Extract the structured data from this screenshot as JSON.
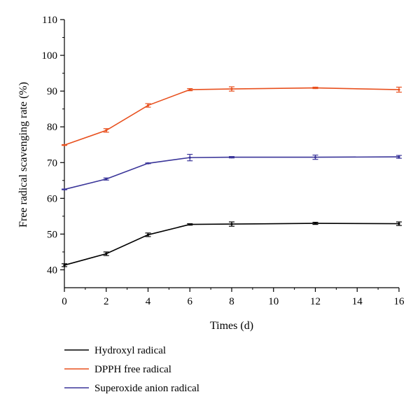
{
  "chart_data": {
    "type": "line",
    "title": "",
    "xlabel": "Times (d)",
    "ylabel": "Free radical scavenging rate (%)",
    "xlim": [
      0,
      16
    ],
    "ylim": [
      35,
      110
    ],
    "x_ticks": [
      0,
      2,
      4,
      6,
      8,
      10,
      12,
      14,
      16
    ],
    "y_ticks": [
      40,
      50,
      60,
      70,
      80,
      90,
      100,
      110
    ],
    "x_tick_labels": [
      "0",
      "2",
      "4",
      "6",
      "8",
      "10",
      "12",
      "14",
      "16"
    ],
    "y_tick_labels": [
      "40",
      "50",
      "60",
      "70",
      "80",
      "90",
      "100",
      "110"
    ],
    "grid": false,
    "legend_position": "below",
    "series": [
      {
        "name": "Hydroxyl radical",
        "color": "#000000",
        "x": [
          0,
          2,
          4,
          6,
          8,
          12,
          16
        ],
        "y": [
          41.3,
          44.5,
          49.8,
          52.7,
          52.8,
          53.0,
          52.9
        ],
        "error": [
          0.4,
          0.5,
          0.5,
          0.2,
          0.6,
          0.3,
          0.5
        ]
      },
      {
        "name": "DPPH free radical",
        "color": "#e8501e",
        "x": [
          0,
          2,
          4,
          6,
          8,
          12,
          16
        ],
        "y": [
          74.9,
          79.0,
          86.0,
          90.4,
          90.6,
          90.9,
          90.4
        ],
        "error": [
          0.1,
          0.5,
          0.5,
          0.3,
          0.6,
          0.2,
          0.7
        ]
      },
      {
        "name": "Superoxide anion radical",
        "color": "#3a3599",
        "x": [
          0,
          2,
          4,
          6,
          8,
          12,
          16
        ],
        "y": [
          62.5,
          65.4,
          69.8,
          71.4,
          71.5,
          71.5,
          71.6
        ],
        "error": [
          0.1,
          0.3,
          0.1,
          0.9,
          0.2,
          0.6,
          0.4
        ]
      }
    ]
  }
}
